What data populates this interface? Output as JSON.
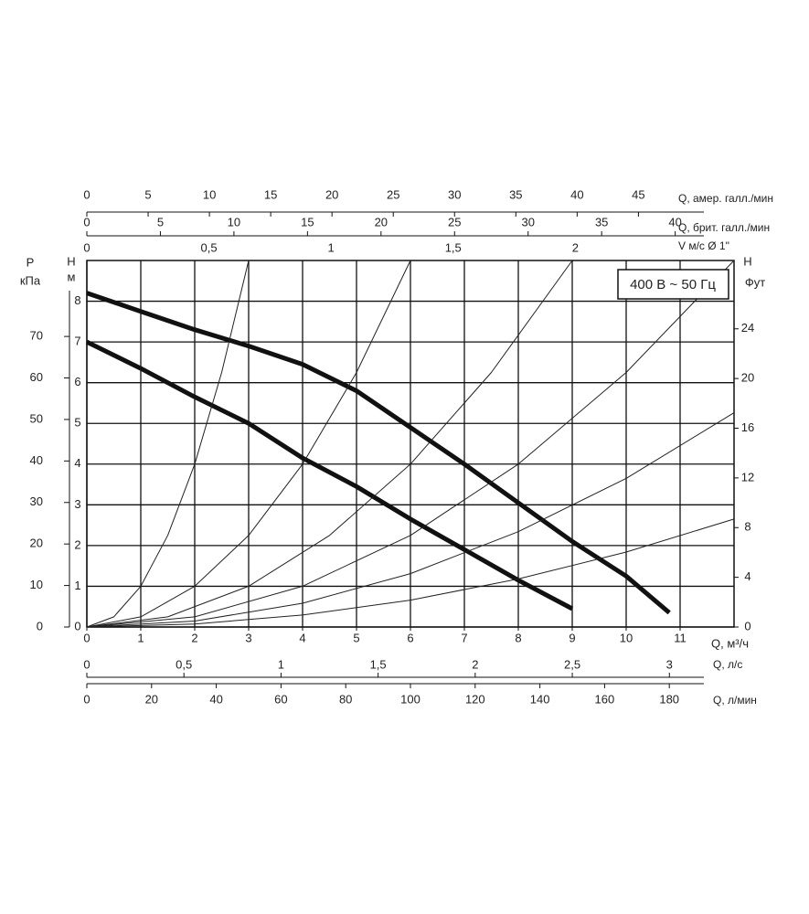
{
  "chart_data": {
    "type": "line",
    "xlabel": "Q, м³/ч",
    "ylabel": "H",
    "yunit": "м",
    "xlim": [
      0,
      12
    ],
    "xticks": [
      0,
      1,
      2,
      3,
      4,
      5,
      6,
      7,
      8,
      9,
      10,
      11
    ],
    "ylim": [
      0,
      9
    ],
    "yticks": [
      0,
      1,
      2,
      3,
      4,
      5,
      6,
      7,
      8
    ],
    "grid": true,
    "annotation": "400 В ~ 50 Гц",
    "top_axes": [
      {
        "label": "Q, амер. галл./мин",
        "lim": [
          0,
          52.8
        ],
        "ticks": [
          0,
          5,
          10,
          15,
          20,
          25,
          30,
          35,
          40,
          45
        ]
      },
      {
        "label": "Q, брит. галл./мин",
        "lim": [
          0,
          44
        ],
        "ticks": [
          0,
          5,
          10,
          15,
          20,
          25,
          30,
          35,
          40
        ]
      },
      {
        "label": "V м/с Ø 1\"",
        "lim": [
          0,
          2.65
        ],
        "ticks": [
          0,
          {
            "value": 0.5,
            "label": "0,5"
          },
          1,
          {
            "value": 1.5,
            "label": "1,5"
          },
          2
        ]
      }
    ],
    "bottom_axes": [
      {
        "label": "Q, л/с",
        "lim": [
          0,
          3.333
        ],
        "ticks": [
          0,
          {
            "value": 0.5,
            "label": "0,5"
          },
          1,
          {
            "value": 1.5,
            "label": "1,5"
          },
          2,
          {
            "value": 2.5,
            "label": "2,5"
          },
          3
        ]
      },
      {
        "label": "Q, л/мин",
        "lim": [
          0,
          200
        ],
        "ticks": [
          0,
          20,
          40,
          60,
          80,
          100,
          120,
          140,
          160,
          180
        ]
      }
    ],
    "left_axis": {
      "label": "P",
      "unit": "кПа",
      "lim": [
        0,
        88.3
      ],
      "ticks": [
        0,
        10,
        20,
        30,
        40,
        50,
        60,
        70
      ]
    },
    "right_axis": {
      "label": "H",
      "unit": "Фут",
      "lim": [
        0,
        29.5
      ],
      "ticks": [
        0,
        4,
        8,
        12,
        16,
        20,
        24
      ]
    },
    "series": [
      {
        "color": "#111111",
        "line_width": 5,
        "x": [
          0,
          1,
          2,
          3,
          4,
          5,
          6,
          7,
          8,
          9,
          10,
          10.8
        ],
        "values": [
          8.2,
          7.75,
          7.3,
          6.9,
          6.45,
          5.8,
          4.9,
          4.0,
          3.05,
          2.1,
          1.25,
          0.35
        ]
      },
      {
        "color": "#111111",
        "line_width": 5,
        "x": [
          0,
          1,
          2,
          3,
          4,
          5,
          6,
          7,
          8,
          9
        ],
        "values": [
          7.0,
          6.35,
          5.65,
          5.0,
          4.15,
          3.45,
          2.65,
          1.9,
          1.15,
          0.45
        ]
      },
      {
        "color": "#222222",
        "line_width": 1,
        "x": [
          0,
          0.5,
          1,
          1.5,
          2,
          2.5,
          3
        ],
        "values": [
          0,
          0.25,
          1,
          2.25,
          4,
          6.25,
          9
        ]
      },
      {
        "color": "#222222",
        "line_width": 1,
        "x": [
          0,
          1,
          2,
          3,
          4,
          5,
          6
        ],
        "values": [
          0,
          0.25,
          1,
          2.25,
          4,
          6.25,
          9
        ]
      },
      {
        "color": "#222222",
        "line_width": 1,
        "x": [
          0,
          1.5,
          3,
          4.5,
          6,
          7.5,
          9
        ],
        "values": [
          0,
          0.25,
          1,
          2.25,
          4,
          6.25,
          9
        ]
      },
      {
        "color": "#222222",
        "line_width": 1,
        "x": [
          0,
          2,
          4,
          6,
          8,
          10,
          12
        ],
        "values": [
          0,
          0.25,
          1,
          2.25,
          4,
          6.25,
          9
        ]
      },
      {
        "color": "#222222",
        "line_width": 1,
        "x": [
          0,
          2,
          4,
          6,
          8,
          10,
          12
        ],
        "values": [
          0,
          0.146,
          0.584,
          1.31,
          2.34,
          3.65,
          5.26
        ]
      },
      {
        "color": "#222222",
        "line_width": 1,
        "x": [
          0,
          2,
          4,
          6,
          8,
          10,
          12
        ],
        "values": [
          0,
          0.074,
          0.294,
          0.66,
          1.18,
          1.84,
          2.65
        ]
      }
    ]
  }
}
